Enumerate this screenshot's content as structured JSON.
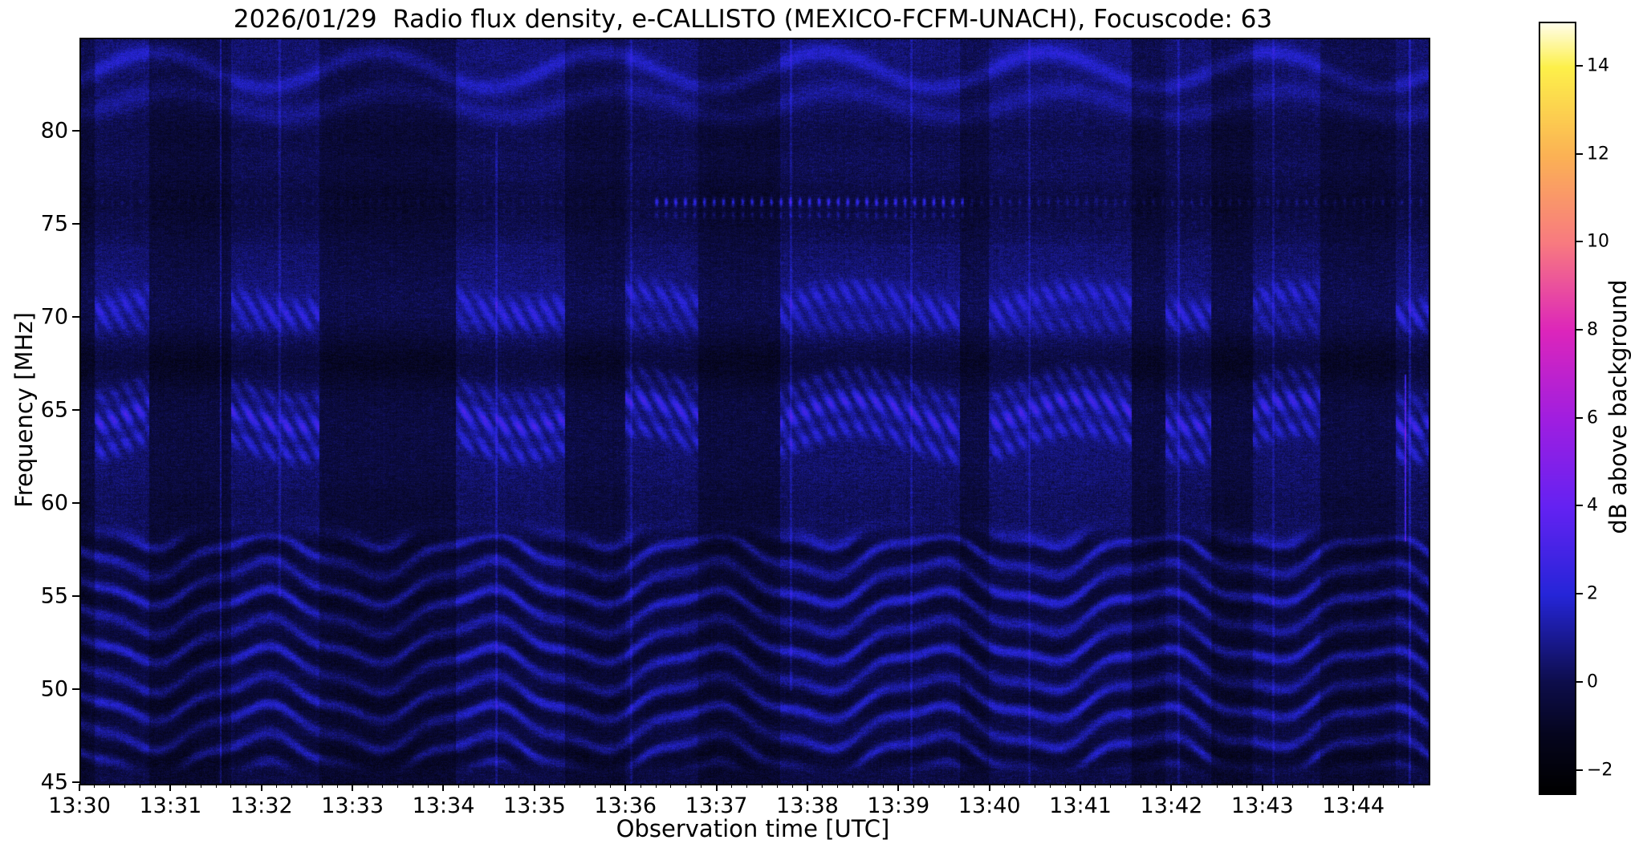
{
  "figure": {
    "title": "2026/01/29  Radio flux density, e-CALLISTO (MEXICO-FCFM-UNACH), Focuscode: 63"
  },
  "chart_data": {
    "type": "heatmap",
    "subtype": "radio-spectrogram",
    "title": "2026/01/29  Radio flux density, e-CALLISTO (MEXICO-FCFM-UNACH), Focuscode: 63",
    "xlabel": "Observation time [UTC]",
    "ylabel": "Frequency [MHz]",
    "x_start_utc": "13:30",
    "x_end_utc": "13:45",
    "time_span_min": 14.81,
    "x_tick_labels": [
      "13:30",
      "13:31",
      "13:32",
      "13:33",
      "13:34",
      "13:35",
      "13:36",
      "13:37",
      "13:38",
      "13:39",
      "13:40",
      "13:41",
      "13:42",
      "13:43",
      "13:44"
    ],
    "x_minor_tick_interval_sec": 10,
    "y_range_mhz": [
      45,
      85
    ],
    "y_ticks": [
      {
        "value": 80,
        "label": "80"
      },
      {
        "value": 75,
        "label": "75"
      },
      {
        "value": 70,
        "label": "70"
      },
      {
        "value": 65,
        "label": "65"
      },
      {
        "value": 60,
        "label": "60"
      },
      {
        "value": 55,
        "label": "55"
      },
      {
        "value": 50,
        "label": "50"
      },
      {
        "value": 45,
        "label": "45"
      }
    ],
    "grid": false,
    "colorbar": {
      "label": "dB above background",
      "min": -2.5,
      "max": 15,
      "ticks": [
        {
          "value": 14,
          "label": "14"
        },
        {
          "value": 12,
          "label": "12"
        },
        {
          "value": 10,
          "label": "10"
        },
        {
          "value": 8,
          "label": "8"
        },
        {
          "value": 6,
          "label": "6"
        },
        {
          "value": 4,
          "label": "4"
        },
        {
          "value": 2,
          "label": "2"
        },
        {
          "value": 0,
          "label": "0"
        },
        {
          "value": -2,
          "label": "−2"
        }
      ],
      "colormap": "gnuplot2",
      "stops": [
        [
          -2.5,
          "#000000"
        ],
        [
          -1.2,
          "#05051d"
        ],
        [
          0,
          "#0d0d4a"
        ],
        [
          2,
          "#2525d8"
        ],
        [
          4,
          "#6422f2"
        ],
        [
          6,
          "#a01ee0"
        ],
        [
          8,
          "#dc25bb"
        ],
        [
          10,
          "#f87a80"
        ],
        [
          12,
          "#fbb254"
        ],
        [
          14,
          "#fdf04a"
        ],
        [
          15,
          "#fffde8"
        ]
      ]
    },
    "features": [
      "quiet dark-blue background near 0 dB with per-channel noise",
      "wavy interference fringes between 45 and 59 MHz, spacing ~1.55 MHz, undulation period ~2.5 min",
      "periodic bright columns with diagonal burst streaks around 62-73 MHz",
      "bright wavy lane near 64-65 MHz, dark lane near 67-68 MHz",
      "dark lane near 76 MHz with dotted carrier at 76.25 MHz, strongest 13:36-13:40",
      "undulating bright arcs near 81.5 and 83.4 MHz",
      "thin vertical interference spikes, strong violet spike near 13:44.5 at 58-67 MHz"
    ],
    "render": {
      "base_level_db": -0.45,
      "gain_segments": [
        [
          0.0,
          0.15,
          0.15
        ],
        [
          0.15,
          0.75,
          0.62
        ],
        [
          0.75,
          1.65,
          0.12
        ],
        [
          1.65,
          2.62,
          0.6
        ],
        [
          2.62,
          4.12,
          0.15
        ],
        [
          4.12,
          5.32,
          0.66
        ],
        [
          5.32,
          5.98,
          0.22
        ],
        [
          5.98,
          6.78,
          0.58
        ],
        [
          6.78,
          7.68,
          0.14
        ],
        [
          7.68,
          9.66,
          0.62
        ],
        [
          9.66,
          9.98,
          0.25
        ],
        [
          9.98,
          11.55,
          0.7
        ],
        [
          11.55,
          11.92,
          0.18
        ],
        [
          11.92,
          12.42,
          0.56
        ],
        [
          12.42,
          12.88,
          0.12
        ],
        [
          12.88,
          13.62,
          0.6
        ],
        [
          13.62,
          14.45,
          0.18
        ],
        [
          14.45,
          14.81,
          0.55
        ]
      ],
      "low_fringe": {
        "range_mhz": [
          45.4,
          59.5
        ],
        "spacing_mhz": 1.55,
        "wave_amp_mhz": 1.05,
        "wave_period_min": 2.45,
        "wave_phase_min": 0.15,
        "strength": 2.4
      },
      "mid_bands": [
        [
          64.9,
          0.45,
          2.6
        ],
        [
          63.4,
          0.38,
          1.7
        ],
        [
          66.3,
          0.33,
          1.1
        ],
        [
          70.9,
          0.5,
          1.5
        ],
        [
          69.7,
          0.4,
          0.9
        ]
      ],
      "mid_wave": {
        "amp_mhz": 0.75,
        "period_min": 2.45,
        "phase_min": 0.55
      },
      "arcs": [
        [
          83.35,
          0.34,
          1.5,
          0.95,
          0.2
        ],
        [
          81.55,
          0.42,
          0.95,
          0.7,
          0.7
        ]
      ],
      "lanes": [
        [
          67.6,
          0.95,
          -0.75
        ],
        [
          76.2,
          1.15,
          -0.5
        ],
        [
          45.35,
          0.8,
          -0.45
        ],
        [
          59.9,
          0.9,
          -0.25
        ],
        [
          79.8,
          0.8,
          -0.3
        ],
        [
          70.9,
          1.2,
          0.25
        ],
        [
          84.3,
          0.8,
          0.3
        ]
      ],
      "dotted_line": {
        "freq_mhz": 76.25,
        "freq2_mhz": 75.55,
        "period_min": 0.105,
        "strong_window_min": [
          6.3,
          9.7
        ],
        "strong_amp": 3.0,
        "late_amp": 0.9,
        "early_amp": 0.45
      },
      "spikes": [
        [
          1.53,
          1.3,
          45,
          85
        ],
        [
          2.18,
          0.9,
          55,
          85
        ],
        [
          4.56,
          1.1,
          45,
          80
        ],
        [
          6.04,
          0.8,
          45,
          85
        ],
        [
          7.8,
          1.0,
          50,
          85
        ],
        [
          9.12,
          0.9,
          45,
          85
        ],
        [
          10.42,
          0.8,
          45,
          85
        ],
        [
          12.06,
          0.9,
          45,
          85
        ],
        [
          13.1,
          0.8,
          45,
          85
        ],
        [
          14.55,
          3.2,
          58,
          67
        ],
        [
          14.6,
          1.2,
          45,
          85
        ]
      ]
    }
  }
}
